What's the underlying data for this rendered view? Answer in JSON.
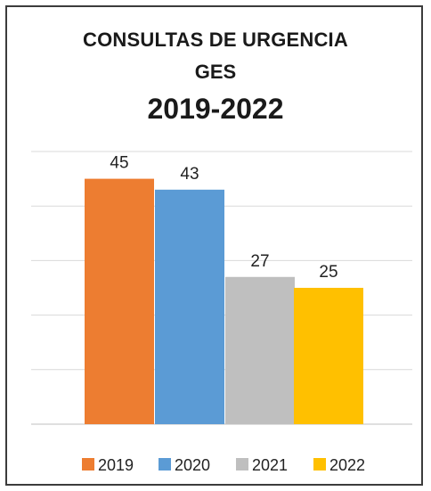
{
  "chart_data": {
    "type": "bar",
    "title": [
      "CONSULTAS DE URGENCIA",
      "GES",
      "2019-2022"
    ],
    "series": [
      {
        "name": "2019",
        "value": 45,
        "color": "#ed7d31"
      },
      {
        "name": "2020",
        "value": 43,
        "color": "#5b9bd5"
      },
      {
        "name": "2021",
        "value": 27,
        "color": "#bfbfbf"
      },
      {
        "name": "2022",
        "value": 25,
        "color": "#ffc000"
      }
    ],
    "ylim": [
      0,
      50
    ],
    "grid": true,
    "legend_position": "bottom"
  }
}
